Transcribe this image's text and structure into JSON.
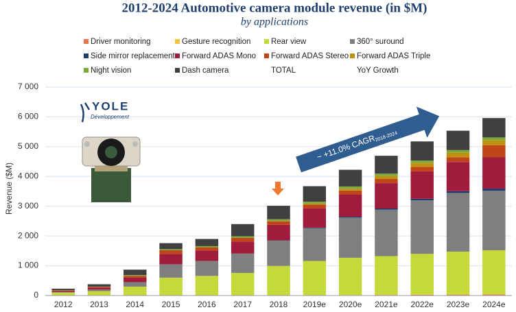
{
  "chart_data": {
    "type": "stacked_bar",
    "title": "2012-2024 Automotive camera module revenue (in $M)",
    "subtitle": "by applications",
    "y_label": "Revenue ($M)",
    "logo": {
      "name": "YOLE",
      "sub": "Développement"
    },
    "annotation": {
      "text": "~ +11.0% CAGR",
      "subscript": "2018-2024"
    },
    "legend_extra": [
      "TOTAL",
      "YoY Growth"
    ],
    "categories": [
      "2012",
      "2013",
      "2014",
      "2015",
      "2016",
      "2017",
      "2018",
      "2019e",
      "2020e",
      "2021e",
      "2022e",
      "2023e",
      "2024e"
    ],
    "ylim": [
      0,
      7000
    ],
    "yticks": [
      0,
      {
        "value": 1000,
        "label": "1 000"
      },
      {
        "value": 2000,
        "label": "2 000"
      },
      {
        "value": 3000,
        "label": "3 000"
      },
      {
        "value": 4000,
        "label": "4 000"
      },
      {
        "value": 5000,
        "label": "5 000"
      },
      {
        "value": 6000,
        "label": "6 000"
      },
      {
        "value": 7000,
        "label": "7 000"
      }
    ],
    "grid": true,
    "series": [
      {
        "name": "Driver monitoring",
        "color": "#e8734a",
        "values": [
          0,
          0,
          0,
          0,
          0,
          0,
          5,
          10,
          15,
          20,
          25,
          30,
          35
        ]
      },
      {
        "name": "Gesture recognition",
        "color": "#f5c242",
        "values": [
          0,
          0,
          0,
          0,
          0,
          0,
          0,
          2,
          3,
          4,
          5,
          5,
          5
        ]
      },
      {
        "name": "Rear view",
        "color": "#c5d93a",
        "values": [
          100,
          150,
          300,
          600,
          660,
          760,
          990,
          1150,
          1250,
          1300,
          1370,
          1440,
          1480
        ]
      },
      {
        "name": "360° suround",
        "color": "#7f7f7f",
        "values": [
          20,
          50,
          150,
          450,
          500,
          650,
          850,
          1100,
          1350,
          1560,
          1800,
          1970,
          2000
        ]
      },
      {
        "name": "Side mirror replacement",
        "color": "#1f3a6e",
        "values": [
          0,
          0,
          0,
          0,
          0,
          0,
          10,
          20,
          30,
          40,
          50,
          60,
          70
        ]
      },
      {
        "name": "Forward ADAS Mono",
        "color": "#a01c3c",
        "values": [
          40,
          70,
          150,
          350,
          350,
          400,
          520,
          650,
          750,
          850,
          920,
          980,
          1060
        ]
      },
      {
        "name": "Forward ADAS Stereo",
        "color": "#c0461a",
        "values": [
          10,
          20,
          60,
          120,
          110,
          130,
          120,
          120,
          130,
          140,
          150,
          160,
          400
        ]
      },
      {
        "name": "Forward ADAS Triple",
        "color": "#c09010",
        "values": [
          0,
          0,
          0,
          0,
          0,
          0,
          10,
          30,
          60,
          100,
          130,
          150,
          160
        ]
      },
      {
        "name": "Night vision",
        "color": "#7fa83a",
        "values": [
          10,
          10,
          30,
          40,
          40,
          50,
          60,
          70,
          75,
          80,
          85,
          90,
          100
        ]
      },
      {
        "name": "Dash camera",
        "color": "#404040",
        "values": [
          50,
          80,
          180,
          200,
          240,
          410,
          450,
          520,
          560,
          600,
          640,
          650,
          650
        ]
      }
    ]
  }
}
